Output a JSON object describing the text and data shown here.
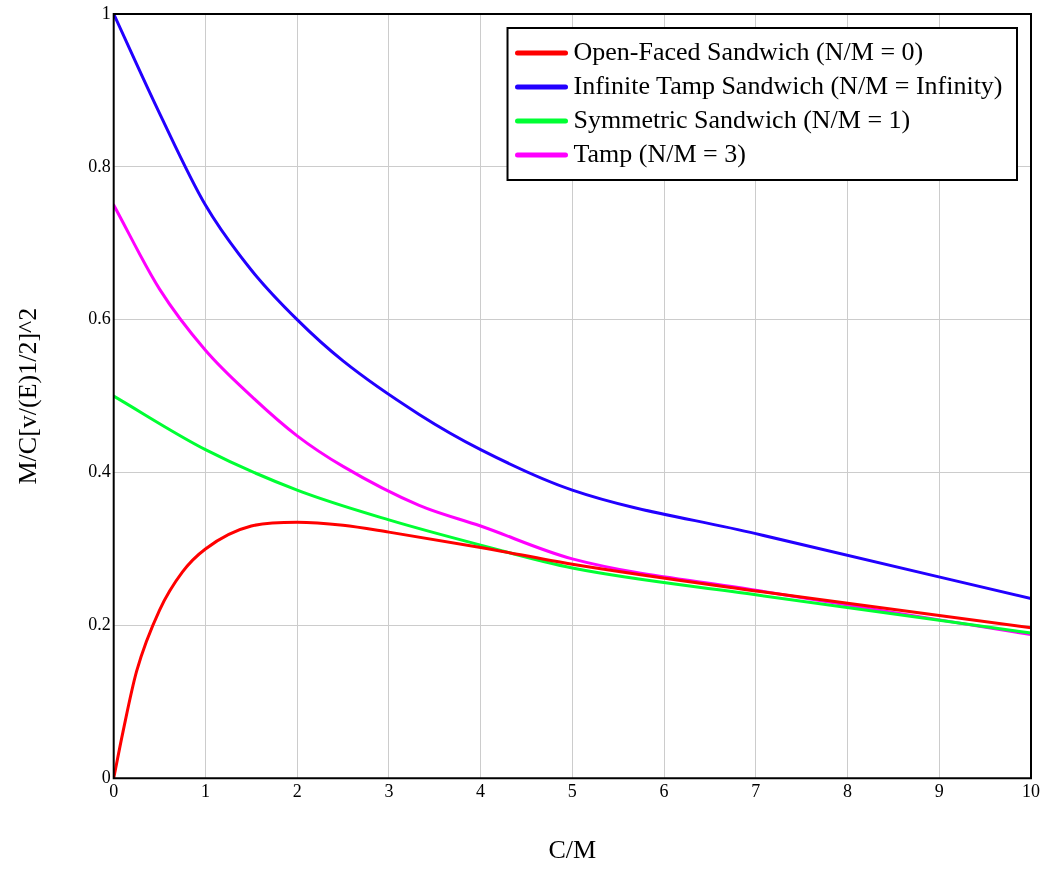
{
  "chart_data": {
    "type": "line",
    "xlabel": "C/M",
    "ylabel": "M/C[v/(E)1/2]^2",
    "xlim": [
      0,
      10
    ],
    "ylim": [
      0,
      1
    ],
    "xticks": [
      0,
      1,
      2,
      3,
      4,
      5,
      6,
      7,
      8,
      9,
      10
    ],
    "yticks": [
      0,
      0.2,
      0.4,
      0.6,
      0.8,
      1
    ],
    "grid": true,
    "legend": "top right",
    "marker": "none",
    "line_style": "solid",
    "series": [
      {
        "name": "Open-Faced Sandwich (N/M = 0)",
        "color": "#ff0000",
        "x": [
          0,
          0.1,
          0.25,
          0.5,
          0.75,
          1,
          1.5,
          2,
          2.5,
          3,
          4,
          5,
          7,
          10
        ],
        "values": [
          0,
          0.06,
          0.14,
          0.22,
          0.27,
          0.3,
          0.33,
          0.335,
          0.331,
          0.322,
          0.302,
          0.28,
          0.245,
          0.197
        ]
      },
      {
        "name": "Infinite Tamp Sandwich (N/M = Infinity)",
        "color": "#2200ff",
        "x": [
          0,
          0.5,
          1,
          1.5,
          2,
          2.5,
          3.33,
          4,
          5,
          7,
          10
        ],
        "values": [
          1,
          0.87,
          0.75,
          0.665,
          0.6,
          0.546,
          0.476,
          0.43,
          0.377,
          0.32,
          0.235
        ]
      },
      {
        "name": "Symmetric Sandwich (N/M = 1)",
        "color": "#00ff33",
        "x": [
          0,
          1,
          2,
          3,
          4,
          5,
          7,
          10
        ],
        "values": [
          0.5,
          0.43,
          0.377,
          0.338,
          0.305,
          0.275,
          0.24,
          0.19
        ]
      },
      {
        "name": "Tamp (N/M = 3)",
        "color": "#ff00ff",
        "x": [
          0,
          0.5,
          1,
          1.5,
          2,
          2.5,
          3.33,
          4,
          5,
          7,
          10
        ],
        "values": [
          0.75,
          0.64,
          0.56,
          0.5,
          0.448,
          0.408,
          0.357,
          0.33,
          0.287,
          0.246,
          0.188
        ]
      }
    ]
  }
}
